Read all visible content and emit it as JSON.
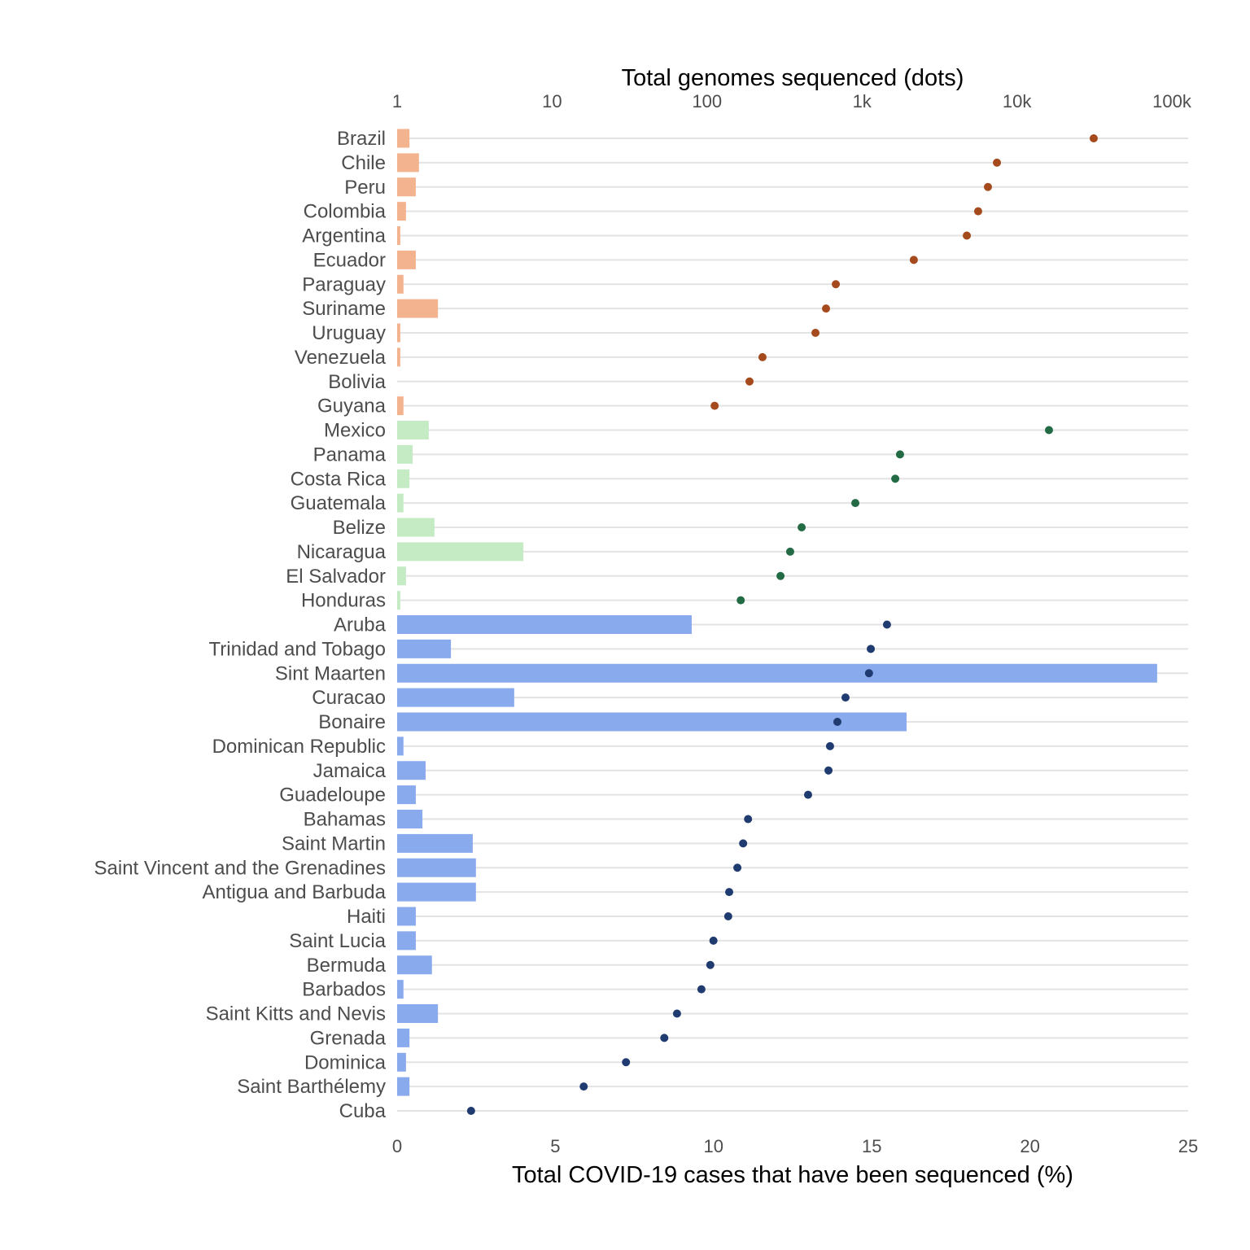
{
  "chart_data": {
    "type": "bar",
    "title_top": "Total genomes sequenced (dots)",
    "xlabel": "Total COVID-19 cases that have been sequenced (%)",
    "bar_axis": {
      "range": [
        0,
        25
      ],
      "ticks": [
        "0",
        "5",
        "10",
        "15",
        "20",
        "25"
      ],
      "tick_values": [
        0,
        5,
        10,
        15,
        20,
        25
      ]
    },
    "dot_axis": {
      "scale": "log10",
      "range": [
        1,
        100000
      ],
      "ticks": [
        "1",
        "10",
        "100",
        "1k",
        "10k",
        "100k"
      ],
      "tick_values": [
        1,
        10,
        100,
        1000,
        10000,
        100000
      ]
    },
    "grid": "horizontal",
    "rows": [
      {
        "country": "Brazil",
        "pct": 0.39,
        "genomes": 31300,
        "bar_color": "#f2b38e",
        "dot_color": "#a44a1c"
      },
      {
        "country": "Chile",
        "pct": 0.69,
        "genomes": 7430,
        "bar_color": "#f2b38e",
        "dot_color": "#a44a1c"
      },
      {
        "country": "Peru",
        "pct": 0.59,
        "genomes": 6500,
        "bar_color": "#f2b38e",
        "dot_color": "#a44a1c"
      },
      {
        "country": "Colombia",
        "pct": 0.28,
        "genomes": 5620,
        "bar_color": "#f2b38e",
        "dot_color": "#a44a1c"
      },
      {
        "country": "Argentina",
        "pct": 0.1,
        "genomes": 4750,
        "bar_color": "#f2b38e",
        "dot_color": "#a44a1c"
      },
      {
        "country": "Ecuador",
        "pct": 0.59,
        "genomes": 2160,
        "bar_color": "#f2b38e",
        "dot_color": "#a44a1c"
      },
      {
        "country": "Paraguay",
        "pct": 0.2,
        "genomes": 678,
        "bar_color": "#f2b38e",
        "dot_color": "#a44a1c"
      },
      {
        "country": "Suriname",
        "pct": 1.29,
        "genomes": 586,
        "bar_color": "#f2b38e",
        "dot_color": "#a44a1c"
      },
      {
        "country": "Uruguay",
        "pct": 0.1,
        "genomes": 501,
        "bar_color": "#f2b38e",
        "dot_color": "#a44a1c"
      },
      {
        "country": "Venezuela",
        "pct": 0.1,
        "genomes": 228,
        "bar_color": "#f2b38e",
        "dot_color": "#a44a1c"
      },
      {
        "country": "Bolivia",
        "pct": 0,
        "genomes": 188,
        "bar_color": "#f2b38e",
        "dot_color": "#a44a1c"
      },
      {
        "country": "Guyana",
        "pct": 0.2,
        "genomes": 112,
        "bar_color": "#f2b38e",
        "dot_color": "#a44a1c"
      },
      {
        "country": "Mexico",
        "pct": 1.0,
        "genomes": 16100,
        "bar_color": "#c5ebc5",
        "dot_color": "#236b45"
      },
      {
        "country": "Panama",
        "pct": 0.49,
        "genomes": 1760,
        "bar_color": "#c5ebc5",
        "dot_color": "#236b45"
      },
      {
        "country": "Costa Rica",
        "pct": 0.39,
        "genomes": 1640,
        "bar_color": "#c5ebc5",
        "dot_color": "#236b45"
      },
      {
        "country": "Guatemala",
        "pct": 0.2,
        "genomes": 906,
        "bar_color": "#c5ebc5",
        "dot_color": "#236b45"
      },
      {
        "country": "Belize",
        "pct": 1.18,
        "genomes": 408,
        "bar_color": "#c5ebc5",
        "dot_color": "#236b45"
      },
      {
        "country": "Nicaragua",
        "pct": 3.99,
        "genomes": 344,
        "bar_color": "#c5ebc5",
        "dot_color": "#236b45"
      },
      {
        "country": "El Salvador",
        "pct": 0.28,
        "genomes": 298,
        "bar_color": "#c5ebc5",
        "dot_color": "#236b45"
      },
      {
        "country": "Honduras",
        "pct": 0.1,
        "genomes": 165,
        "bar_color": "#c5ebc5",
        "dot_color": "#236b45"
      },
      {
        "country": "Aruba",
        "pct": 9.31,
        "genomes": 1450,
        "bar_color": "#8aaaee",
        "dot_color": "#1f3b6f"
      },
      {
        "country": "Trinidad and Tobago",
        "pct": 1.7,
        "genomes": 1140,
        "bar_color": "#8aaaee",
        "dot_color": "#1f3b6f"
      },
      {
        "country": "Sint Maarten",
        "pct": 24.02,
        "genomes": 1110,
        "bar_color": "#8aaaee",
        "dot_color": "#1f3b6f"
      },
      {
        "country": "Curacao",
        "pct": 3.7,
        "genomes": 783,
        "bar_color": "#8aaaee",
        "dot_color": "#1f3b6f"
      },
      {
        "country": "Bonaire",
        "pct": 16.1,
        "genomes": 694,
        "bar_color": "#8aaaee",
        "dot_color": "#1f3b6f"
      },
      {
        "country": "Dominican Republic",
        "pct": 0.2,
        "genomes": 622,
        "bar_color": "#8aaaee",
        "dot_color": "#1f3b6f"
      },
      {
        "country": "Jamaica",
        "pct": 0.9,
        "genomes": 608,
        "bar_color": "#8aaaee",
        "dot_color": "#1f3b6f"
      },
      {
        "country": "Guadeloupe",
        "pct": 0.59,
        "genomes": 449,
        "bar_color": "#8aaaee",
        "dot_color": "#1f3b6f"
      },
      {
        "country": "Bahamas",
        "pct": 0.8,
        "genomes": 184,
        "bar_color": "#8aaaee",
        "dot_color": "#1f3b6f"
      },
      {
        "country": "Saint Martin",
        "pct": 2.39,
        "genomes": 171,
        "bar_color": "#8aaaee",
        "dot_color": "#1f3b6f"
      },
      {
        "country": "Saint Vincent and the Grenadines",
        "pct": 2.49,
        "genomes": 157,
        "bar_color": "#8aaaee",
        "dot_color": "#1f3b6f"
      },
      {
        "country": "Antigua and Barbuda",
        "pct": 2.49,
        "genomes": 139,
        "bar_color": "#8aaaee",
        "dot_color": "#1f3b6f"
      },
      {
        "country": "Haiti",
        "pct": 0.59,
        "genomes": 137,
        "bar_color": "#8aaaee",
        "dot_color": "#1f3b6f"
      },
      {
        "country": "Saint Lucia",
        "pct": 0.59,
        "genomes": 110,
        "bar_color": "#8aaaee",
        "dot_color": "#1f3b6f"
      },
      {
        "country": "Bermuda",
        "pct": 1.1,
        "genomes": 105,
        "bar_color": "#8aaaee",
        "dot_color": "#1f3b6f"
      },
      {
        "country": "Barbados",
        "pct": 0.2,
        "genomes": 92,
        "bar_color": "#8aaaee",
        "dot_color": "#1f3b6f"
      },
      {
        "country": "Saint Kitts and Nevis",
        "pct": 1.29,
        "genomes": 64,
        "bar_color": "#8aaaee",
        "dot_color": "#1f3b6f"
      },
      {
        "country": "Grenada",
        "pct": 0.39,
        "genomes": 53,
        "bar_color": "#8aaaee",
        "dot_color": "#1f3b6f"
      },
      {
        "country": "Dominica",
        "pct": 0.28,
        "genomes": 30,
        "bar_color": "#8aaaee",
        "dot_color": "#1f3b6f"
      },
      {
        "country": "Saint Barthélemy",
        "pct": 0.39,
        "genomes": 16,
        "bar_color": "#8aaaee",
        "dot_color": "#1f3b6f"
      },
      {
        "country": "Cuba",
        "pct": 0,
        "genomes": 3,
        "bar_color": "#8aaaee",
        "dot_color": "#1f3b6f"
      }
    ]
  }
}
